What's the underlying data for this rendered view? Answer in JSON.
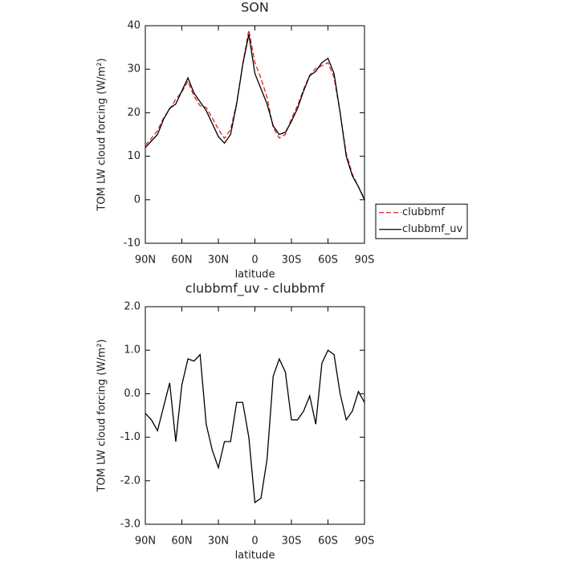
{
  "chart_data": [
    {
      "type": "line",
      "title": "SON",
      "xlabel": "latitude",
      "ylabel": "TOM LW cloud forcing (W/m²)",
      "x": [
        90,
        85,
        80,
        75,
        70,
        65,
        60,
        55,
        50,
        45,
        40,
        35,
        30,
        25,
        20,
        15,
        10,
        5,
        0,
        -5,
        -10,
        -15,
        -20,
        -25,
        -30,
        -35,
        -40,
        -45,
        -50,
        -55,
        -60,
        -65,
        -70,
        -75,
        -80,
        -85,
        -90
      ],
      "xlim": [
        90,
        -90
      ],
      "xticks": [
        {
          "value": 90,
          "label": "90N"
        },
        {
          "value": 60,
          "label": "60N"
        },
        {
          "value": 30,
          "label": "30N"
        },
        0,
        {
          "value": -30,
          "label": "30S"
        },
        {
          "value": -60,
          "label": "60S"
        },
        {
          "value": -90,
          "label": "90S"
        }
      ],
      "ylim": [
        -10,
        40
      ],
      "yticks": [
        -10,
        0,
        10,
        20,
        30,
        40
      ],
      "legend": "right",
      "series": [
        {
          "name": "clubbmf",
          "color": "#e02020",
          "dash": true,
          "values": [
            12.5,
            14.1,
            15.9,
            18.8,
            20.8,
            23.1,
            24.8,
            27.2,
            23.8,
            21.6,
            21.2,
            18.8,
            16.2,
            14.1,
            16.1,
            22.2,
            31.2,
            39,
            31.5,
            27.9,
            23.5,
            16.6,
            14.2,
            15,
            18.6,
            21.6,
            25.4,
            28.6,
            30.2,
            30.8,
            31.5,
            28.1,
            20,
            10.6,
            5.9,
            3,
            0.2
          ]
        },
        {
          "name": "clubbmf_uv",
          "color": "#000000",
          "dash": false,
          "values": [
            12,
            13.5,
            15,
            18.5,
            21,
            22,
            25,
            28,
            24.5,
            22.5,
            20.5,
            17.5,
            14.5,
            13,
            15,
            22,
            31,
            38,
            29,
            25.5,
            22,
            17,
            15,
            15.5,
            18,
            21,
            25,
            28.5,
            29.5,
            31.5,
            32.5,
            29,
            20,
            10,
            5.5,
            3,
            0
          ]
        }
      ]
    },
    {
      "type": "line",
      "title": "clubbmf_uv - clubbmf",
      "xlabel": "latitude",
      "ylabel": "TOM LW cloud forcing (W/m²)",
      "x": [
        90,
        85,
        80,
        75,
        70,
        65,
        60,
        55,
        50,
        45,
        40,
        35,
        30,
        25,
        20,
        15,
        10,
        5,
        0,
        -5,
        -10,
        -15,
        -20,
        -25,
        -30,
        -35,
        -40,
        -45,
        -50,
        -55,
        -60,
        -65,
        -70,
        -75,
        -80,
        -85,
        -90
      ],
      "xlim": [
        90,
        -90
      ],
      "xticks": [
        {
          "value": 90,
          "label": "90N"
        },
        {
          "value": 60,
          "label": "60N"
        },
        {
          "value": 30,
          "label": "30N"
        },
        0,
        {
          "value": -30,
          "label": "30S"
        },
        {
          "value": -60,
          "label": "60S"
        },
        {
          "value": -90,
          "label": "90S"
        }
      ],
      "ylim": [
        -3,
        2
      ],
      "yticks": [
        {
          "value": -3,
          "label": "-3.0"
        },
        {
          "value": -2,
          "label": "-2.0"
        },
        {
          "value": -1,
          "label": "-1.0"
        },
        {
          "value": 0,
          "label": "0.0"
        },
        {
          "value": 1,
          "label": "1.0"
        },
        {
          "value": 2,
          "label": "2.0"
        }
      ],
      "series": [
        {
          "color": "#000000",
          "dash": false,
          "values": [
            -0.45,
            -0.6,
            -0.85,
            -0.3,
            0.25,
            -1.1,
            0.2,
            0.8,
            0.75,
            0.9,
            -0.7,
            -1.3,
            -1.7,
            -1.1,
            -1.1,
            -0.2,
            -0.2,
            -1.0,
            -2.5,
            -2.4,
            -1.5,
            0.4,
            0.8,
            0.5,
            -0.6,
            -0.6,
            -0.4,
            -0.05,
            -0.7,
            0.7,
            1.0,
            0.9,
            0.0,
            -0.6,
            -0.4,
            0.05,
            -0.2
          ]
        }
      ]
    }
  ]
}
